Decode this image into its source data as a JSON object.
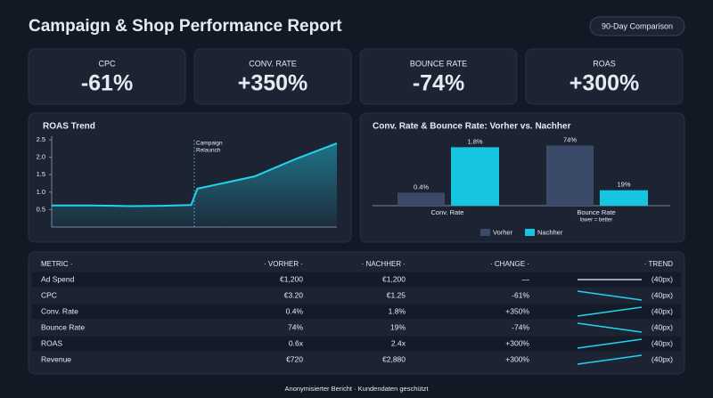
{
  "header": {
    "title": "Campaign & Shop Performance Report",
    "badge": "90-Day Comparison"
  },
  "kpis": [
    {
      "label": "CPC",
      "value": "-61%"
    },
    {
      "label": "CONV. RATE",
      "value": "+350%"
    },
    {
      "label": "BOUNCE RATE",
      "value": "-74%"
    },
    {
      "label": "ROAS",
      "value": "+300%"
    }
  ],
  "chart_data": [
    {
      "type": "line",
      "title": "ROAS Trend",
      "x": [
        0,
        12,
        25,
        35,
        44,
        46,
        64,
        77,
        90
      ],
      "values": [
        0.62,
        0.62,
        0.6,
        0.61,
        0.63,
        1.1,
        1.45,
        1.95,
        2.4
      ],
      "color": "#22d3ee",
      "xlim": [
        0,
        90
      ],
      "ylim": [
        0,
        2.5
      ],
      "yticks": [
        0.5,
        {
          "value": 1,
          "label": "1.0"
        },
        1.5,
        {
          "value": 2,
          "label": "2.0"
        },
        2.5
      ],
      "grid": false,
      "annotation": {
        "x": 45,
        "text": [
          "Campaign",
          "Relaunch"
        ]
      }
    },
    {
      "type": "bar",
      "title": "Conv. Rate & Bounce Rate: Vorher vs. Nachher",
      "categories": [
        "Conv. Rate",
        "Bounce Rate"
      ],
      "category_notes": [
        null,
        "lower = better"
      ],
      "ylims": [
        [
          0,
          2
        ],
        [
          0,
          80
        ]
      ],
      "series": [
        {
          "name": "Vorher",
          "color": "#3a4a68",
          "values": [
            0.4,
            74
          ],
          "value_labels": [
            "0.4%",
            "74%"
          ]
        },
        {
          "name": "Nachher",
          "color": "#16c5e0",
          "values": [
            1.8,
            19
          ],
          "value_labels": [
            "1.8%",
            "19%"
          ]
        }
      ]
    }
  ],
  "table": {
    "columns": [
      "METRIC ·",
      "· VORHER ·",
      "· NACHHER ·",
      "· CHANGE ·",
      "· TREND"
    ],
    "rows": [
      [
        "Ad Spend",
        "€1,200",
        "€1,200",
        "—",
        "(40px)"
      ],
      [
        "CPC",
        "€3.20",
        "€1.25",
        "-61%",
        "(40px)"
      ],
      [
        "Conv. Rate",
        "0.4%",
        "1.8%",
        "+350%",
        "(40px)"
      ],
      [
        "Bounce Rate",
        "74%",
        "19%",
        "-74%",
        "(40px)"
      ],
      [
        "ROAS",
        "0.6x",
        "2.4x",
        "+300%",
        "(40px)"
      ],
      [
        "Revenue",
        "€720",
        "€2,880",
        "+300%",
        "(40px)"
      ]
    ]
  },
  "footer": "Anonymisierter Bericht · Kundendaten geschützt"
}
